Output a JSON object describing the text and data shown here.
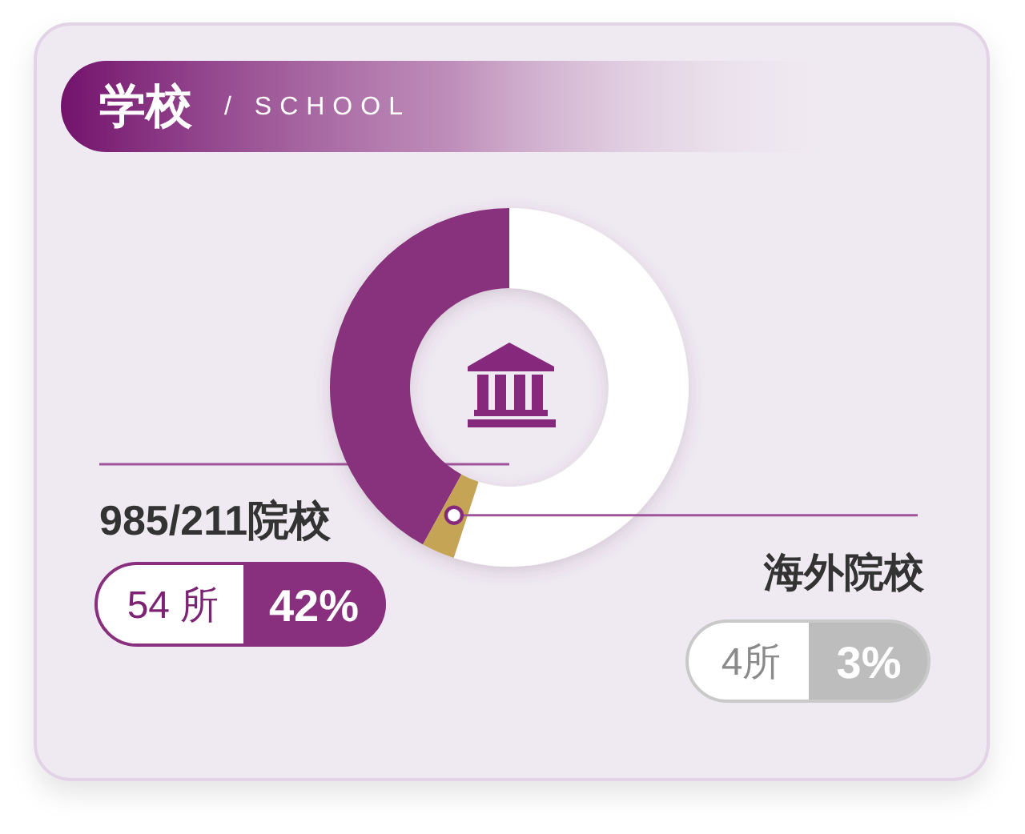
{
  "chart_data": {
    "type": "donut",
    "title": "学校",
    "subtitle": "/ SCHOOL",
    "categories": [
      "985/211院校",
      "海外院校",
      null
    ],
    "values": [
      42,
      3,
      55
    ],
    "colors": [
      "#88307d",
      "#c5a455",
      "#ffffff"
    ],
    "value_labels": [
      "42%",
      "3%",
      null
    ],
    "annotations": [
      "54 所",
      "4所"
    ]
  }
}
